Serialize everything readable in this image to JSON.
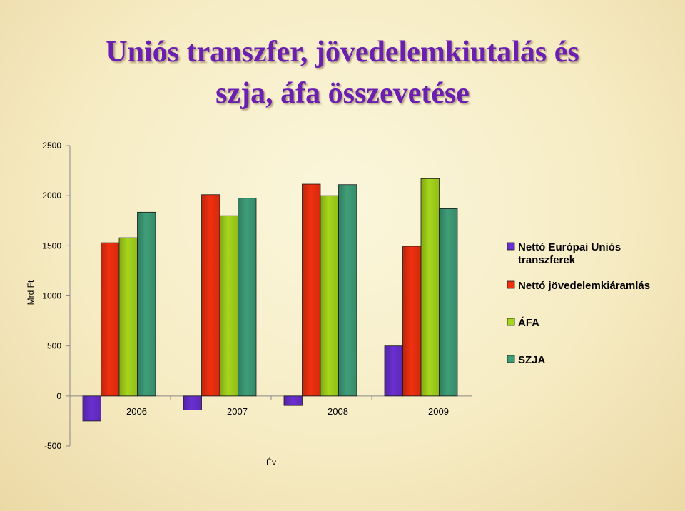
{
  "title_line1": "Uniós transzfer, jövedelemkiutalás és",
  "title_line2": "szja, áfa összevetése",
  "chart_data": {
    "type": "bar",
    "categories": [
      "2006",
      "2007",
      "2008",
      "2009"
    ],
    "series": [
      {
        "name": "Nettó Európai Uniós transzferek",
        "legend_lines": [
          "Nettó Európai Uniós",
          "transzferek"
        ],
        "color": "#6a2fd0",
        "values": [
          -250,
          -140,
          -95,
          500
        ]
      },
      {
        "name": "Nettó jövedelemkiáramlás",
        "legend_lines": [
          "Nettó jövedelemkiáramlás"
        ],
        "color": "#f03010",
        "values": [
          1530,
          2010,
          2115,
          1495
        ]
      },
      {
        "name": "ÁFA",
        "legend_lines": [
          "ÁFA"
        ],
        "color": "#a6d61c",
        "values": [
          1580,
          1800,
          2000,
          2170
        ]
      },
      {
        "name": "SZJA",
        "legend_lines": [
          "SZJA"
        ],
        "color": "#3e9e78",
        "values": [
          1835,
          1975,
          2110,
          1870
        ]
      }
    ],
    "xlabel": "Év",
    "ylabel": "Mrd Ft",
    "ylim": [
      -500,
      2500
    ],
    "yticks": [
      -500,
      0,
      500,
      1000,
      1500,
      2000,
      2500
    ],
    "grid": false,
    "legend_position": "right"
  }
}
